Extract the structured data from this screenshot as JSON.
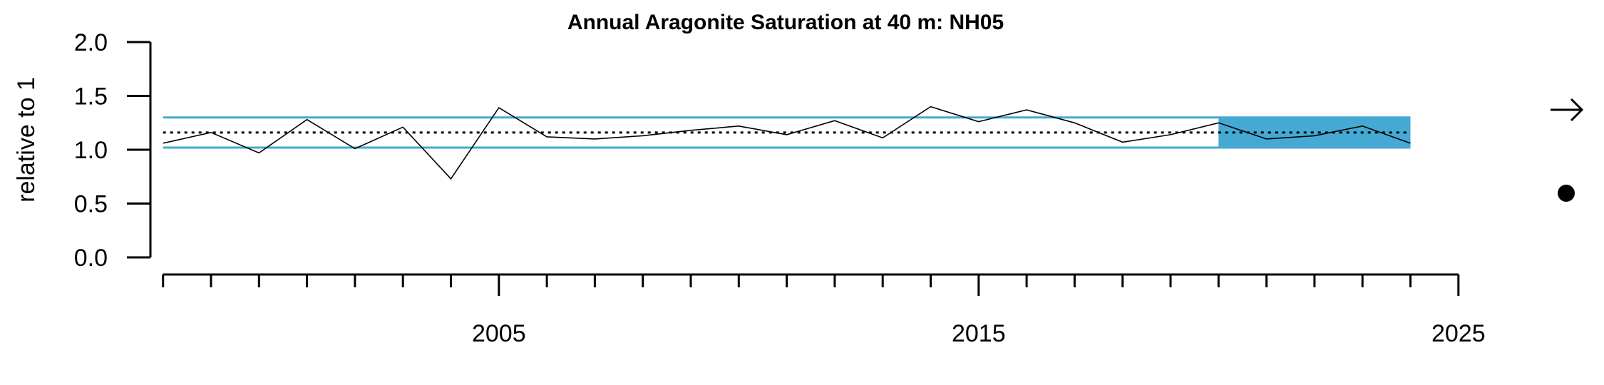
{
  "chart_data": {
    "type": "line",
    "title": "Annual Aragonite Saturation at 40 m: NH05",
    "xlabel": "",
    "ylabel": "relative to 1",
    "xlim": [
      1999,
      2025
    ],
    "ylim": [
      0,
      2
    ],
    "y_ticks": [
      "0.0",
      "0.5",
      "1.0",
      "1.5",
      "2.0"
    ],
    "x_major_ticks": [
      2005,
      2015,
      2025
    ],
    "x_tick_labels": [
      "2005",
      "2015",
      "2025"
    ],
    "x_minor_ticks": [
      1998,
      1999,
      2000,
      2001,
      2002,
      2003,
      2004,
      2006,
      2007,
      2008,
      2009,
      2010,
      2011,
      2012,
      2013,
      2014,
      2016,
      2017,
      2018,
      2019,
      2020,
      2021,
      2022,
      2023,
      2024
    ],
    "series": [
      {
        "x": [
          1998,
          1999,
          2000,
          2001,
          2002,
          2003,
          2004,
          2005,
          2006,
          2007,
          2008,
          2009,
          2010,
          2011,
          2012,
          2013,
          2014,
          2015,
          2016,
          2017,
          2018,
          2019,
          2020,
          2021,
          2022,
          2023,
          2024
        ],
        "values": [
          1.06,
          1.16,
          0.97,
          1.28,
          1.01,
          1.21,
          0.73,
          1.39,
          1.12,
          1.1,
          1.13,
          1.18,
          1.22,
          1.14,
          1.27,
          1.11,
          1.4,
          1.26,
          1.37,
          1.25,
          1.07,
          1.14,
          1.25,
          1.1,
          1.13,
          1.22,
          1.06
        ]
      }
    ],
    "mean_line": 1.16,
    "upper_sd_line": 1.3,
    "lower_sd_line": 1.02,
    "highlight_x_range": [
      2020,
      2024
    ],
    "colors": {
      "band": "#45A9D3",
      "series": "#000000",
      "mean": "#000000"
    },
    "indicators": {
      "trend_icon": "right-arrow",
      "status_icon": "filled-circle"
    },
    "grid": false,
    "legend": "none"
  }
}
